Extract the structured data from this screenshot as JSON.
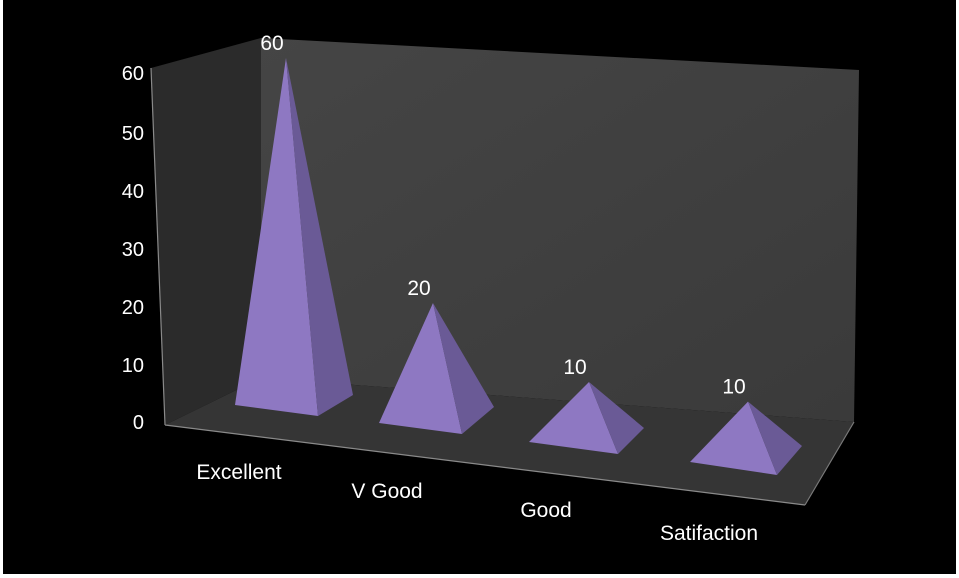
{
  "chart_data": {
    "type": "bar",
    "subtype": "3d-pyramid",
    "categories": [
      "Excellent",
      "V Good",
      "Good",
      "Satifaction"
    ],
    "values": [
      60,
      20,
      10,
      10
    ],
    "data_labels": [
      "60",
      "20",
      "10",
      "10"
    ],
    "yticks": [
      "0",
      "10",
      "20",
      "30",
      "40",
      "50",
      "60"
    ],
    "ylim": [
      0,
      60
    ],
    "grid": false,
    "legend": "none",
    "colors": {
      "background": "#000000",
      "back_wall": "#404040",
      "side_wall": "#2a2a2a",
      "floor": "#343434",
      "pyramid_front": "#8e78c2",
      "pyramid_side": "#6a5a96",
      "text": "#ffffff"
    }
  }
}
